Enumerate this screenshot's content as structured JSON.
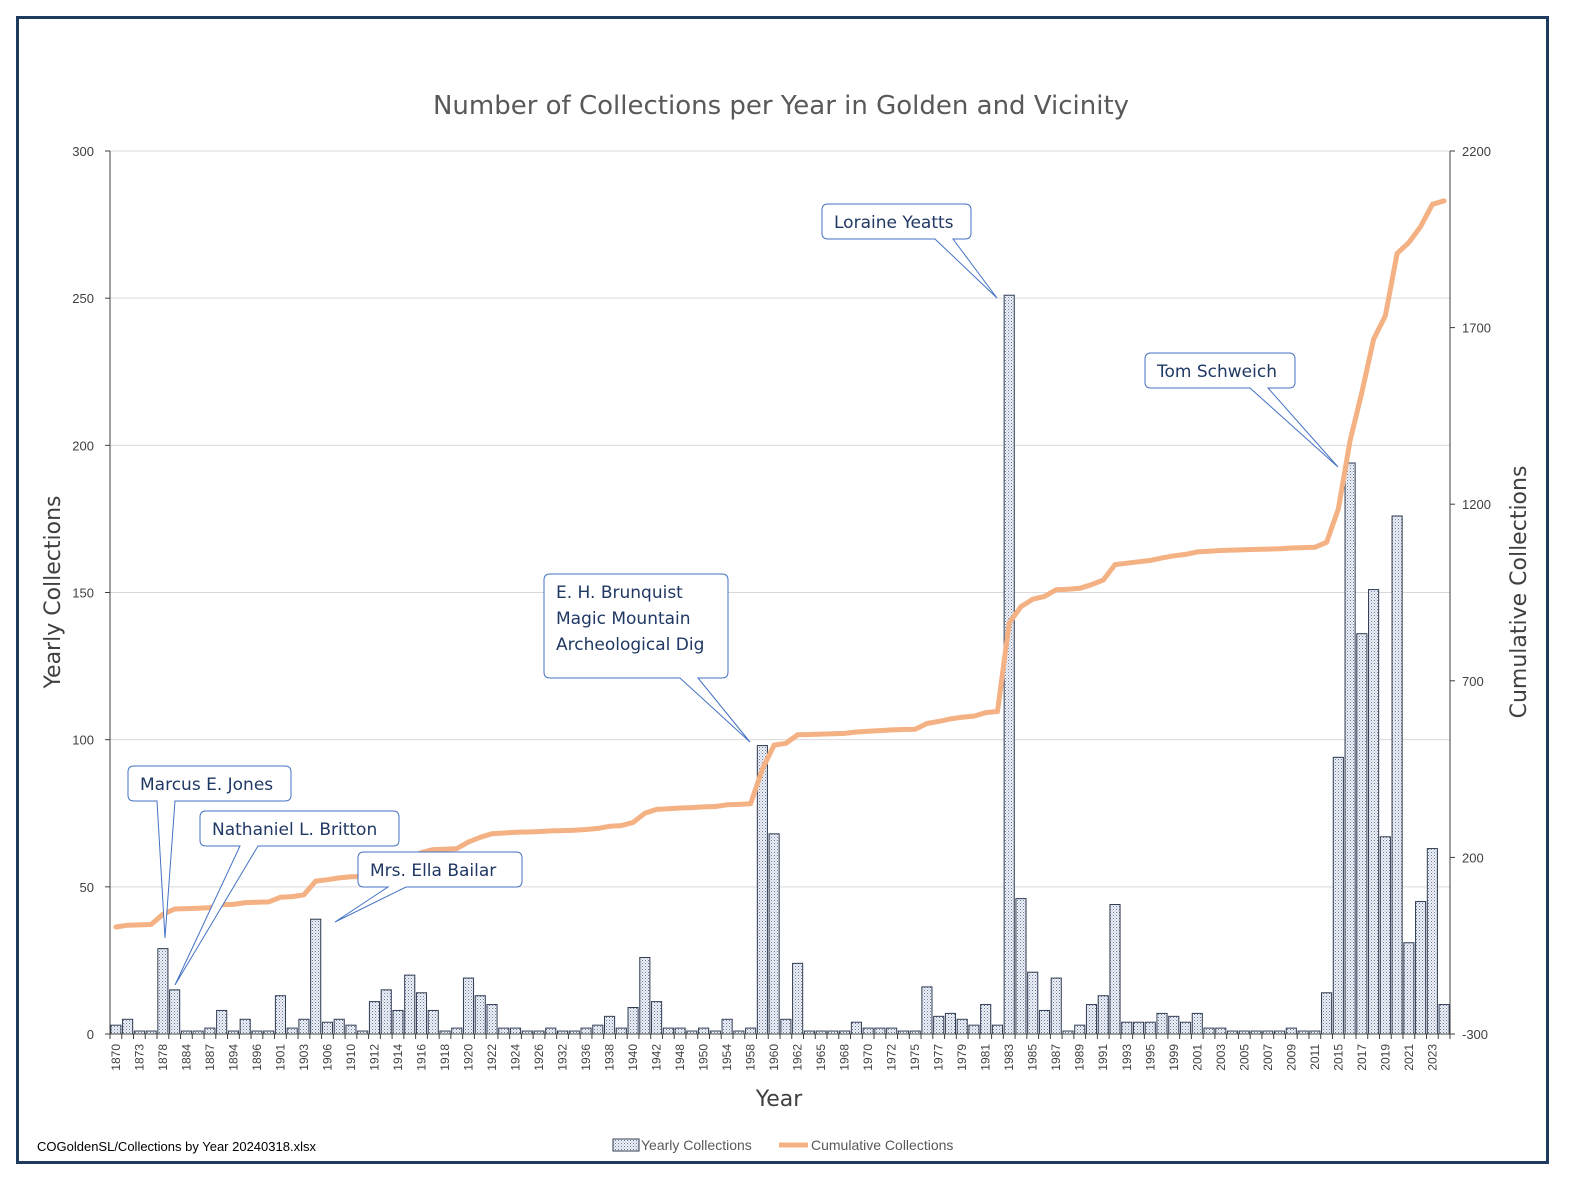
{
  "chart_data": {
    "type": "bar+line",
    "title": "Number of Collections per Year in Golden and Vicinity",
    "xlabel": "Year",
    "ylabel": "Yearly Collections",
    "y2label": "Cumulative Collections",
    "ylim": [
      0,
      300
    ],
    "y2lim": [
      -300,
      2200
    ],
    "yticks": [
      0,
      50,
      100,
      150,
      200,
      250,
      300
    ],
    "y2ticks": [
      -300,
      200,
      700,
      1200,
      1700,
      2200
    ],
    "years": [
      "1870",
      "1871",
      "1873",
      "1874",
      "1878",
      "1879",
      "1884",
      "1885",
      "1887",
      "1888",
      "1894",
      "1895",
      "1896",
      "1897",
      "1901",
      "1902",
      "1903",
      "1904",
      "1906",
      "1909",
      "1910",
      "1911",
      "1912",
      "1913",
      "1914",
      "1915",
      "1916",
      "1917",
      "1918",
      "1919",
      "1920",
      "1921",
      "1922",
      "1923",
      "1924",
      "1925",
      "1926",
      "1929",
      "1932",
      "1933",
      "1936",
      "1937",
      "1938",
      "1939",
      "1940",
      "1941",
      "1942",
      "1947",
      "1948",
      "1949",
      "1950",
      "1951",
      "1954",
      "1955",
      "1958",
      "1959",
      "1960",
      "1961",
      "1962",
      "1964",
      "1965",
      "1966",
      "1968",
      "1969",
      "1970",
      "1971",
      "1972",
      "1974",
      "1975",
      "1976",
      "1977",
      "1978",
      "1979",
      "1980",
      "1981",
      "1982",
      "1983",
      "1984",
      "1985",
      "1986",
      "1987",
      "1988",
      "1989",
      "1990",
      "1991",
      "1992",
      "1993",
      "1994",
      "1995",
      "1996",
      "1999",
      "2000",
      "2001",
      "2002",
      "2003",
      "2004",
      "2005",
      "2006",
      "2007",
      "2008",
      "2009",
      "2010",
      "2011",
      "2014",
      "2015",
      "2016",
      "2017",
      "2018",
      "2019",
      "2020",
      "2021",
      "2022",
      "2023",
      "2024"
    ],
    "x_tick_labels": [
      "1870",
      "1873",
      "1878",
      "1884",
      "1887",
      "1894",
      "1896",
      "1901",
      "1903",
      "1906",
      "1910",
      "1912",
      "1914",
      "1916",
      "1918",
      "1920",
      "1922",
      "1924",
      "1926",
      "1932",
      "1936",
      "1938",
      "1940",
      "1942",
      "1948",
      "1950",
      "1954",
      "1958",
      "1960",
      "1962",
      "1965",
      "1968",
      "1970",
      "1972",
      "1975",
      "1977",
      "1979",
      "1981",
      "1983",
      "1985",
      "1987",
      "1989",
      "1991",
      "1993",
      "1995",
      "1999",
      "2001",
      "2003",
      "2005",
      "2007",
      "2009",
      "2011",
      "2015",
      "2017",
      "2019",
      "2021",
      "2023"
    ],
    "series": [
      {
        "name": "Yearly Collections",
        "type": "bar",
        "values": [
          3,
          5,
          1,
          1,
          29,
          15,
          1,
          1,
          2,
          8,
          1,
          5,
          1,
          1,
          13,
          2,
          5,
          39,
          4,
          5,
          3,
          1,
          11,
          15,
          8,
          20,
          14,
          8,
          1,
          2,
          19,
          13,
          10,
          2,
          2,
          1,
          1,
          2,
          1,
          1,
          2,
          3,
          6,
          2,
          9,
          26,
          11,
          2,
          2,
          1,
          2,
          1,
          5,
          1,
          2,
          98,
          68,
          5,
          24,
          1,
          1,
          1,
          1,
          4,
          2,
          2,
          2,
          1,
          1,
          16,
          6,
          7,
          5,
          3,
          10,
          3,
          251,
          46,
          21,
          8,
          19,
          1,
          3,
          10,
          13,
          44,
          4,
          4,
          4,
          7,
          6,
          4,
          7,
          2,
          2,
          1,
          1,
          1,
          1,
          1,
          2,
          1,
          1,
          14,
          94,
          194,
          136,
          151,
          67,
          176,
          31,
          45,
          63,
          10
        ]
      },
      {
        "name": "Cumulative Collections",
        "type": "line",
        "color": "#f4b183"
      }
    ],
    "annotations": [
      {
        "lines": [
          "Marcus E. Jones"
        ],
        "year": "1878"
      },
      {
        "lines": [
          "Nathaniel L. Britton"
        ],
        "year": "1879"
      },
      {
        "lines": [
          "Mrs. Ella Bailar"
        ],
        "year": "1904"
      },
      {
        "lines": [
          "E. H. Brunquist",
          "Magic Mountain",
          "Archeological  Dig"
        ],
        "year": "1959"
      },
      {
        "lines": [
          "Loraine Yeatts"
        ],
        "year": "1983"
      },
      {
        "lines": [
          "Tom Schweich"
        ],
        "year": "2016"
      }
    ],
    "legend": [
      "Yearly Collections",
      "Cumulative Collections"
    ],
    "legend_position": "bottom"
  },
  "footer_note": "COGoldenSL/Collections by Year 20240318.xlsx"
}
